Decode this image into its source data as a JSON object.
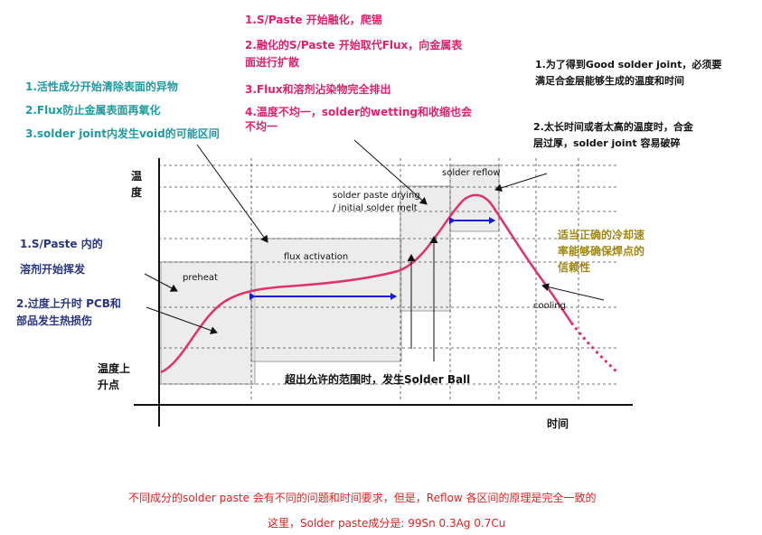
{
  "notes": {
    "top_center": [
      "1.S/Paste 开始融化，爬锡",
      "2.融化的S/Paste 开始取代Flux，向金属表",
      "面进行扩散",
      "3.Flux和溶剂沾染物完全排出",
      "4.温度不均一，solder的wetting和收缩也会",
      "不均一"
    ],
    "top_left": [
      "1.活性成分开始清除表面的异物",
      "2.Flux防止金属表面再氧化",
      "3.solder joint内发生void的可能区间"
    ],
    "top_right": [
      "1.为了得到Good solder joint，必须要",
      "满足合金层能够生成的温度和时间"
    ],
    "mid_right": [
      "2.太长时间或者太高的温度时，合金",
      "层过厚，solder joint 容易破碎"
    ],
    "left_solvent": [
      "1.S/Paste 内的",
      "溶剂开始挥发"
    ],
    "left_damage": [
      "2.过度上升时 PCB和",
      "部品发生热损伤"
    ],
    "right_cooling": [
      "适当正确的冷却速",
      "率能够确保焊点的",
      "信赖性"
    ],
    "bottom_ball": "超出允许的范围时，发生Solder Ball"
  },
  "axis": {
    "y_label": [
      "温",
      "度"
    ],
    "x_label": "时间",
    "ramp_label": [
      "温度上",
      "升点"
    ]
  },
  "zones": {
    "preheat": "preheat",
    "flux_activation": "flux activation",
    "drying": [
      "solder paste drying",
      "/ initial solder melt"
    ],
    "reflow": "solder reflow",
    "cooling": "cooling"
  },
  "footer": {
    "line1": "不同成分的solder paste 会有不同的问题和时间要求，但是，Reflow 各区间的原理是完全一致的",
    "line2": "这里，Solder paste成分是: 99Sn 0.3Ag 0.7Cu"
  },
  "colors": {
    "teal": "#1f9aa0",
    "magenta": "#e0206c",
    "navy": "#2a3580",
    "olive": "#a08810",
    "red": "#e02020",
    "curve": "#e03070",
    "range_arrow": "#1a1ad0"
  }
}
